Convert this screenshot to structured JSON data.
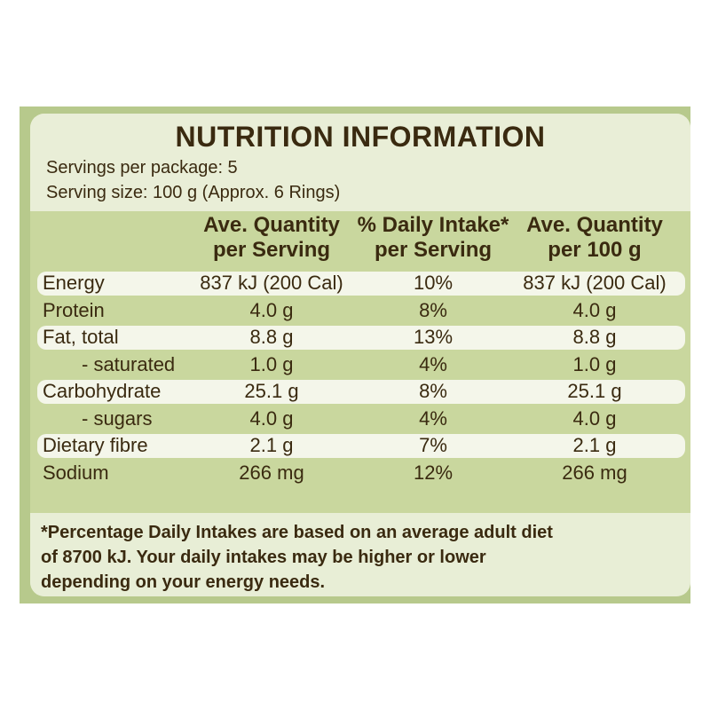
{
  "label": {
    "title": "NUTRITION INFORMATION",
    "servings_per_package": "Servings per package: 5",
    "serving_size": "Serving size: 100 g (Approx. 6 Rings)"
  },
  "table": {
    "headers": [
      {
        "line1": "Ave. Quantity",
        "line2": "per Serving"
      },
      {
        "line1": "% Daily Intake*",
        "line2": "per Serving"
      },
      {
        "line1": "Ave. Quantity",
        "line2": "per 100 g"
      }
    ],
    "rows": [
      {
        "name": "Energy",
        "per_serving": "837 kJ (200 Cal)",
        "daily_intake": "10%",
        "per_100g": "837 kJ (200 Cal)"
      },
      {
        "name": "Protein",
        "per_serving": "4.0 g",
        "daily_intake": "8%",
        "per_100g": "4.0 g"
      },
      {
        "name": "Fat, total",
        "per_serving": "8.8 g",
        "daily_intake": "13%",
        "per_100g": "8.8 g"
      },
      {
        "name": "- saturated",
        "per_serving": "1.0 g",
        "daily_intake": "4%",
        "per_100g": "1.0 g"
      },
      {
        "name": "Carbohydrate",
        "per_serving": "25.1 g",
        "daily_intake": "8%",
        "per_100g": "25.1 g"
      },
      {
        "name": "- sugars",
        "per_serving": "4.0 g",
        "daily_intake": "4%",
        "per_100g": "4.0 g"
      },
      {
        "name": "Dietary fibre",
        "per_serving": "2.1 g",
        "daily_intake": "7%",
        "per_100g": "2.1 g"
      },
      {
        "name": "Sodium",
        "per_serving": "266 mg",
        "daily_intake": "12%",
        "per_100g": "266 mg"
      }
    ]
  },
  "footnote": {
    "line1": "*Percentage Daily Intakes are based on an average adult diet",
    "line2": "of 8700 kJ. Your daily intakes may be higher or lower",
    "line3": "depending on your energy needs."
  },
  "colors": {
    "text": "#3a2a10",
    "panel_green": "#b7c98c",
    "table_green": "#c9d79e",
    "row_highlight": "#f4f6ea"
  }
}
